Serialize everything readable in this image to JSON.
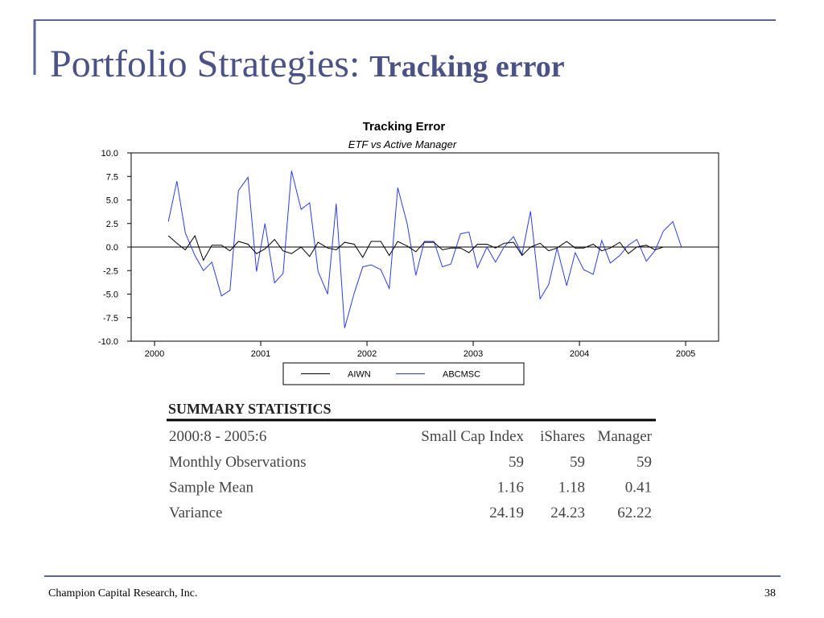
{
  "header": {
    "title": "Portfolio Strategies:",
    "title_emphasis": "Tracking error"
  },
  "chart_data": {
    "type": "line",
    "title": "Tracking Error",
    "subtitle": "ETF vs Active Manager",
    "x": [
      2000.13,
      2000.21,
      2000.29,
      2000.38,
      2000.46,
      2000.54,
      2000.63,
      2000.71,
      2000.79,
      2000.88,
      2000.96,
      2001.04,
      2001.13,
      2001.21,
      2001.29,
      2001.38,
      2001.46,
      2001.54,
      2001.63,
      2001.71,
      2001.79,
      2001.88,
      2001.96,
      2002.04,
      2002.13,
      2002.21,
      2002.29,
      2002.38,
      2002.46,
      2002.54,
      2002.63,
      2002.71,
      2002.79,
      2002.88,
      2002.96,
      2003.04,
      2003.13,
      2003.21,
      2003.29,
      2003.38,
      2003.46,
      2003.54,
      2003.63,
      2003.71,
      2003.79,
      2003.88,
      2003.96,
      2004.04,
      2004.13,
      2004.21,
      2004.29,
      2004.38,
      2004.46,
      2004.54,
      2004.63,
      2004.71,
      2004.79,
      2004.88,
      2004.96
    ],
    "series": [
      {
        "name": "AIWN",
        "color": "#000000",
        "values": [
          1.2,
          0.4,
          -0.3,
          1.2,
          -1.4,
          0.2,
          0.2,
          -0.4,
          0.6,
          0.3,
          -0.7,
          -0.2,
          0.8,
          -0.4,
          -0.7,
          0.0,
          -1.0,
          0.5,
          -0.1,
          -0.3,
          0.5,
          0.3,
          -1.1,
          0.6,
          0.6,
          -0.9,
          0.6,
          0.1,
          -0.5,
          0.5,
          0.5,
          -0.3,
          -0.1,
          -0.1,
          -0.6,
          0.3,
          0.3,
          -0.1,
          0.4,
          0.5,
          -0.9,
          0.0,
          0.4,
          -0.4,
          -0.1,
          0.6,
          -0.1,
          -0.1,
          0.3,
          -0.4,
          -0.1,
          0.5,
          -0.7,
          0.0,
          0.2,
          -0.3,
          0.0,
          0.0,
          0.0
        ]
      },
      {
        "name": "ABCMSC",
        "color": "#2b3cf0",
        "values": [
          2.7,
          7.0,
          1.5,
          -0.9,
          -2.5,
          -1.6,
          -5.2,
          -4.6,
          6.0,
          7.4,
          -2.6,
          2.5,
          -3.8,
          -2.8,
          8.1,
          4.0,
          4.7,
          -2.6,
          -5.0,
          4.6,
          -8.6,
          -4.9,
          -2.1,
          -1.9,
          -2.4,
          -4.4,
          6.3,
          2.4,
          -3.0,
          0.6,
          0.6,
          -2.1,
          -1.8,
          1.4,
          1.6,
          -2.2,
          0.0,
          -1.6,
          0.0,
          1.1,
          -0.8,
          3.8,
          -5.5,
          -4.0,
          -0.1,
          -4.1,
          -0.6,
          -2.4,
          -2.9,
          0.7,
          -1.7,
          -0.9,
          0.2,
          0.8,
          -1.5,
          -0.4,
          1.7,
          2.7,
          0.0
        ]
      }
    ],
    "xlim": [
      1999.78,
      2005.31
    ],
    "xticks": [
      2000,
      2001,
      2002,
      2003,
      2004,
      2005
    ],
    "ylim": [
      -10,
      10
    ],
    "yticks": [
      {
        "value": 10,
        "label": "10.0"
      },
      {
        "value": 7.5,
        "label": "7.5"
      },
      {
        "value": 5,
        "label": "5.0"
      },
      {
        "value": 2.5,
        "label": "2.5"
      },
      {
        "value": 0,
        "label": "0.0"
      },
      {
        "value": -2.5,
        "label": "-2.5"
      },
      {
        "value": -5,
        "label": "-5.0"
      },
      {
        "value": -7.5,
        "label": "-7.5"
      },
      {
        "value": -10,
        "label": "-10.0"
      }
    ],
    "zero_line": true,
    "legend": "bottom"
  },
  "table": {
    "title": "SUMMARY STATISTICS",
    "header": [
      "2000:8 - 2005:6",
      "Small Cap Index",
      "iShares",
      "Manager"
    ],
    "rows": [
      [
        "Monthly Observations",
        "59",
        "59",
        "59"
      ],
      [
        "Sample Mean",
        "1.16",
        "1.18",
        "0.41"
      ],
      [
        "Variance",
        "24.19",
        "24.23",
        "62.22"
      ]
    ]
  },
  "footer": {
    "text": "Champion Capital Research, Inc.",
    "page": "38"
  }
}
